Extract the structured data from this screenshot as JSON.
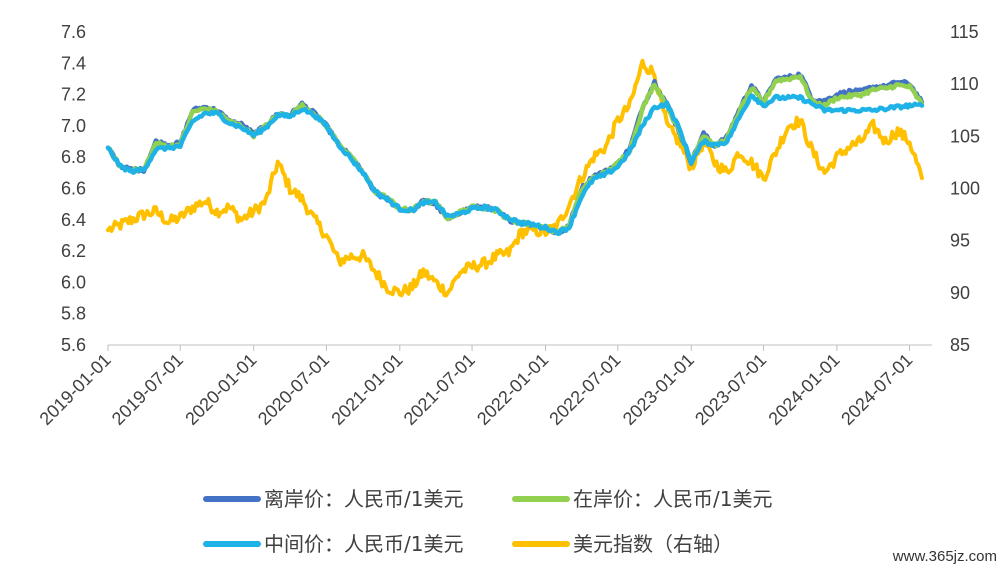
{
  "chart_data": {
    "type": "line",
    "x_tick_labels": [
      "2019-01-01",
      "2019-07-01",
      "2020-01-01",
      "2020-07-01",
      "2021-01-01",
      "2021-07-01",
      "2022-01-01",
      "2022-07-01",
      "2023-01-01",
      "2023-07-01",
      "2024-01-01",
      "2024-07-01"
    ],
    "y_left": {
      "ticks": [
        "5.6",
        "5.8",
        "6.0",
        "6.2",
        "6.4",
        "6.6",
        "6.8",
        "7.0",
        "7.2",
        "7.4",
        "7.6"
      ],
      "range": [
        5.6,
        7.6
      ]
    },
    "y_right": {
      "ticks": [
        "85",
        "90",
        "95",
        "100",
        "105",
        "110",
        "115"
      ],
      "range": [
        85,
        115
      ]
    },
    "grid": false,
    "legend_position": "bottom",
    "series": [
      {
        "name": "离岸价：人民币/1美元",
        "axis": "left",
        "color": "#4472C4",
        "points": [
          [
            "2019-01-01",
            6.86
          ],
          [
            "2019-02-01",
            6.74
          ],
          [
            "2019-03-01",
            6.72
          ],
          [
            "2019-04-01",
            6.72
          ],
          [
            "2019-05-01",
            6.9
          ],
          [
            "2019-06-01",
            6.88
          ],
          [
            "2019-07-01",
            6.89
          ],
          [
            "2019-08-01",
            7.1
          ],
          [
            "2019-09-01",
            7.12
          ],
          [
            "2019-10-01",
            7.1
          ],
          [
            "2019-11-01",
            7.03
          ],
          [
            "2019-12-01",
            7.01
          ],
          [
            "2020-01-01",
            6.95
          ],
          [
            "2020-02-01",
            7.0
          ],
          [
            "2020-03-01",
            7.08
          ],
          [
            "2020-04-01",
            7.07
          ],
          [
            "2020-05-01",
            7.14
          ],
          [
            "2020-06-01",
            7.08
          ],
          [
            "2020-07-01",
            7.0
          ],
          [
            "2020-08-01",
            6.88
          ],
          [
            "2020-09-01",
            6.8
          ],
          [
            "2020-10-01",
            6.7
          ],
          [
            "2020-11-01",
            6.57
          ],
          [
            "2020-12-01",
            6.53
          ],
          [
            "2021-01-01",
            6.47
          ],
          [
            "2021-02-01",
            6.46
          ],
          [
            "2021-03-01",
            6.52
          ],
          [
            "2021-04-01",
            6.5
          ],
          [
            "2021-05-01",
            6.4
          ],
          [
            "2021-06-01",
            6.45
          ],
          [
            "2021-07-01",
            6.48
          ],
          [
            "2021-08-01",
            6.48
          ],
          [
            "2021-09-01",
            6.46
          ],
          [
            "2021-10-01",
            6.4
          ],
          [
            "2021-11-01",
            6.38
          ],
          [
            "2021-12-01",
            6.37
          ],
          [
            "2022-01-01",
            6.35
          ],
          [
            "2022-02-01",
            6.31
          ],
          [
            "2022-03-01",
            6.36
          ],
          [
            "2022-04-01",
            6.6
          ],
          [
            "2022-05-01",
            6.68
          ],
          [
            "2022-06-01",
            6.71
          ],
          [
            "2022-07-01",
            6.76
          ],
          [
            "2022-08-01",
            6.86
          ],
          [
            "2022-09-01",
            7.12
          ],
          [
            "2022-10-01",
            7.28
          ],
          [
            "2022-11-01",
            7.14
          ],
          [
            "2022-12-01",
            6.97
          ],
          [
            "2023-01-01",
            6.77
          ],
          [
            "2023-02-01",
            6.95
          ],
          [
            "2023-03-01",
            6.87
          ],
          [
            "2023-04-01",
            6.93
          ],
          [
            "2023-05-01",
            7.1
          ],
          [
            "2023-06-01",
            7.26
          ],
          [
            "2023-07-01",
            7.15
          ],
          [
            "2023-08-01",
            7.3
          ],
          [
            "2023-09-01",
            7.31
          ],
          [
            "2023-10-01",
            7.33
          ],
          [
            "2023-11-01",
            7.17
          ],
          [
            "2023-12-01",
            7.16
          ],
          [
            "2024-01-01",
            7.2
          ],
          [
            "2024-02-01",
            7.22
          ],
          [
            "2024-03-01",
            7.22
          ],
          [
            "2024-04-01",
            7.25
          ],
          [
            "2024-05-01",
            7.25
          ],
          [
            "2024-06-01",
            7.28
          ],
          [
            "2024-07-01",
            7.27
          ],
          [
            "2024-08-01",
            7.15
          ]
        ]
      },
      {
        "name": "在岸价：人民币/1美元",
        "axis": "left",
        "color": "#92D050",
        "points": [
          [
            "2019-01-01",
            6.86
          ],
          [
            "2019-02-01",
            6.74
          ],
          [
            "2019-03-01",
            6.72
          ],
          [
            "2019-04-01",
            6.72
          ],
          [
            "2019-05-01",
            6.89
          ],
          [
            "2019-06-01",
            6.87
          ],
          [
            "2019-07-01",
            6.88
          ],
          [
            "2019-08-01",
            7.09
          ],
          [
            "2019-09-01",
            7.11
          ],
          [
            "2019-10-01",
            7.09
          ],
          [
            "2019-11-01",
            7.03
          ],
          [
            "2019-12-01",
            7.0
          ],
          [
            "2020-01-01",
            6.94
          ],
          [
            "2020-02-01",
            7.0
          ],
          [
            "2020-03-01",
            7.07
          ],
          [
            "2020-04-01",
            7.07
          ],
          [
            "2020-05-01",
            7.13
          ],
          [
            "2020-06-01",
            7.08
          ],
          [
            "2020-07-01",
            7.0
          ],
          [
            "2020-08-01",
            6.89
          ],
          [
            "2020-09-01",
            6.8
          ],
          [
            "2020-10-01",
            6.7
          ],
          [
            "2020-11-01",
            6.58
          ],
          [
            "2020-12-01",
            6.54
          ],
          [
            "2021-01-01",
            6.47
          ],
          [
            "2021-02-01",
            6.46
          ],
          [
            "2021-03-01",
            6.52
          ],
          [
            "2021-04-01",
            6.51
          ],
          [
            "2021-05-01",
            6.41
          ],
          [
            "2021-06-01",
            6.45
          ],
          [
            "2021-07-01",
            6.48
          ],
          [
            "2021-08-01",
            6.48
          ],
          [
            "2021-09-01",
            6.46
          ],
          [
            "2021-10-01",
            6.4
          ],
          [
            "2021-11-01",
            6.38
          ],
          [
            "2021-12-01",
            6.37
          ],
          [
            "2022-01-01",
            6.35
          ],
          [
            "2022-02-01",
            6.32
          ],
          [
            "2022-03-01",
            6.36
          ],
          [
            "2022-04-01",
            6.59
          ],
          [
            "2022-05-01",
            6.67
          ],
          [
            "2022-06-01",
            6.7
          ],
          [
            "2022-07-01",
            6.76
          ],
          [
            "2022-08-01",
            6.85
          ],
          [
            "2022-09-01",
            7.11
          ],
          [
            "2022-10-01",
            7.27
          ],
          [
            "2022-11-01",
            7.13
          ],
          [
            "2022-12-01",
            6.97
          ],
          [
            "2023-01-01",
            6.78
          ],
          [
            "2023-02-01",
            6.94
          ],
          [
            "2023-03-01",
            6.87
          ],
          [
            "2023-04-01",
            6.92
          ],
          [
            "2023-05-01",
            7.09
          ],
          [
            "2023-06-01",
            7.24
          ],
          [
            "2023-07-01",
            7.15
          ],
          [
            "2023-08-01",
            7.29
          ],
          [
            "2023-09-01",
            7.3
          ],
          [
            "2023-10-01",
            7.32
          ],
          [
            "2023-11-01",
            7.15
          ],
          [
            "2023-12-01",
            7.13
          ],
          [
            "2024-01-01",
            7.18
          ],
          [
            "2024-02-01",
            7.19
          ],
          [
            "2024-03-01",
            7.2
          ],
          [
            "2024-04-01",
            7.23
          ],
          [
            "2024-05-01",
            7.24
          ],
          [
            "2024-06-01",
            7.26
          ],
          [
            "2024-07-01",
            7.25
          ],
          [
            "2024-08-01",
            7.14
          ]
        ]
      },
      {
        "name": "中间价：人民币/1美元",
        "axis": "left",
        "color": "#1FB2E6",
        "points": [
          [
            "2019-01-01",
            6.86
          ],
          [
            "2019-02-01",
            6.74
          ],
          [
            "2019-03-01",
            6.71
          ],
          [
            "2019-04-01",
            6.72
          ],
          [
            "2019-05-01",
            6.85
          ],
          [
            "2019-06-01",
            6.86
          ],
          [
            "2019-07-01",
            6.87
          ],
          [
            "2019-08-01",
            7.03
          ],
          [
            "2019-09-01",
            7.08
          ],
          [
            "2019-10-01",
            7.08
          ],
          [
            "2019-11-01",
            7.02
          ],
          [
            "2019-12-01",
            6.99
          ],
          [
            "2020-01-01",
            6.94
          ],
          [
            "2020-02-01",
            6.99
          ],
          [
            "2020-03-01",
            7.07
          ],
          [
            "2020-04-01",
            7.06
          ],
          [
            "2020-05-01",
            7.11
          ],
          [
            "2020-06-01",
            7.07
          ],
          [
            "2020-07-01",
            7.0
          ],
          [
            "2020-08-01",
            6.88
          ],
          [
            "2020-09-01",
            6.79
          ],
          [
            "2020-10-01",
            6.7
          ],
          [
            "2020-11-01",
            6.58
          ],
          [
            "2020-12-01",
            6.53
          ],
          [
            "2021-01-01",
            6.47
          ],
          [
            "2021-02-01",
            6.46
          ],
          [
            "2021-03-01",
            6.51
          ],
          [
            "2021-04-01",
            6.51
          ],
          [
            "2021-05-01",
            6.42
          ],
          [
            "2021-06-01",
            6.44
          ],
          [
            "2021-07-01",
            6.47
          ],
          [
            "2021-08-01",
            6.48
          ],
          [
            "2021-09-01",
            6.46
          ],
          [
            "2021-10-01",
            6.41
          ],
          [
            "2021-11-01",
            6.38
          ],
          [
            "2021-12-01",
            6.37
          ],
          [
            "2022-01-01",
            6.35
          ],
          [
            "2022-02-01",
            6.32
          ],
          [
            "2022-03-01",
            6.35
          ],
          [
            "2022-04-01",
            6.55
          ],
          [
            "2022-05-01",
            6.66
          ],
          [
            "2022-06-01",
            6.69
          ],
          [
            "2022-07-01",
            6.74
          ],
          [
            "2022-08-01",
            6.84
          ],
          [
            "2022-09-01",
            7.0
          ],
          [
            "2022-10-01",
            7.12
          ],
          [
            "2022-11-01",
            7.14
          ],
          [
            "2022-12-01",
            6.99
          ],
          [
            "2023-01-01",
            6.77
          ],
          [
            "2023-02-01",
            6.9
          ],
          [
            "2023-03-01",
            6.88
          ],
          [
            "2023-04-01",
            6.9
          ],
          [
            "2023-05-01",
            7.05
          ],
          [
            "2023-06-01",
            7.2
          ],
          [
            "2023-07-01",
            7.13
          ],
          [
            "2023-08-01",
            7.18
          ],
          [
            "2023-09-01",
            7.18
          ],
          [
            "2023-10-01",
            7.18
          ],
          [
            "2023-11-01",
            7.14
          ],
          [
            "2023-12-01",
            7.1
          ],
          [
            "2024-01-01",
            7.1
          ],
          [
            "2024-02-01",
            7.1
          ],
          [
            "2024-03-01",
            7.1
          ],
          [
            "2024-04-01",
            7.1
          ],
          [
            "2024-05-01",
            7.11
          ],
          [
            "2024-06-01",
            7.12
          ],
          [
            "2024-07-01",
            7.13
          ],
          [
            "2024-08-01",
            7.13
          ]
        ]
      },
      {
        "name": "美元指数（右轴）",
        "axis": "right",
        "color": "#FFC000",
        "points": [
          [
            "2019-01-01",
            96.0
          ],
          [
            "2019-02-01",
            96.5
          ],
          [
            "2019-03-01",
            97.0
          ],
          [
            "2019-04-01",
            97.5
          ],
          [
            "2019-05-01",
            97.8
          ],
          [
            "2019-06-01",
            96.8
          ],
          [
            "2019-07-01",
            97.2
          ],
          [
            "2019-08-01",
            98.2
          ],
          [
            "2019-09-01",
            98.8
          ],
          [
            "2019-10-01",
            97.8
          ],
          [
            "2019-11-01",
            98.2
          ],
          [
            "2019-12-01",
            97.0
          ],
          [
            "2020-01-01",
            97.8
          ],
          [
            "2020-02-01",
            98.8
          ],
          [
            "2020-03-01",
            102.5
          ],
          [
            "2020-04-01",
            100.0
          ],
          [
            "2020-05-01",
            99.0
          ],
          [
            "2020-06-01",
            97.0
          ],
          [
            "2020-07-01",
            95.5
          ],
          [
            "2020-08-01",
            93.0
          ],
          [
            "2020-09-01",
            93.5
          ],
          [
            "2020-10-01",
            93.5
          ],
          [
            "2020-11-01",
            92.0
          ],
          [
            "2020-12-01",
            90.5
          ],
          [
            "2021-01-01",
            90.0
          ],
          [
            "2021-02-01",
            90.5
          ],
          [
            "2021-03-01",
            92.0
          ],
          [
            "2021-04-01",
            91.0
          ],
          [
            "2021-05-01",
            90.0
          ],
          [
            "2021-06-01",
            92.0
          ],
          [
            "2021-07-01",
            92.5
          ],
          [
            "2021-08-01",
            92.8
          ],
          [
            "2021-09-01",
            93.5
          ],
          [
            "2021-10-01",
            93.8
          ],
          [
            "2021-11-01",
            95.8
          ],
          [
            "2021-12-01",
            96.0
          ],
          [
            "2022-01-01",
            95.8
          ],
          [
            "2022-02-01",
            96.5
          ],
          [
            "2022-03-01",
            98.5
          ],
          [
            "2022-04-01",
            101.0
          ],
          [
            "2022-05-01",
            103.0
          ],
          [
            "2022-06-01",
            104.0
          ],
          [
            "2022-07-01",
            106.5
          ],
          [
            "2022-08-01",
            108.0
          ],
          [
            "2022-09-01",
            112.0
          ],
          [
            "2022-10-01",
            111.0
          ],
          [
            "2022-11-01",
            106.0
          ],
          [
            "2022-12-01",
            104.5
          ],
          [
            "2023-01-01",
            102.0
          ],
          [
            "2023-02-01",
            104.5
          ],
          [
            "2023-03-01",
            102.5
          ],
          [
            "2023-04-01",
            101.5
          ],
          [
            "2023-05-01",
            103.5
          ],
          [
            "2023-06-01",
            102.5
          ],
          [
            "2023-07-01",
            101.0
          ],
          [
            "2023-08-01",
            103.5
          ],
          [
            "2023-09-01",
            106.0
          ],
          [
            "2023-10-01",
            106.5
          ],
          [
            "2023-11-01",
            103.5
          ],
          [
            "2023-12-01",
            101.5
          ],
          [
            "2024-01-01",
            103.0
          ],
          [
            "2024-02-01",
            104.0
          ],
          [
            "2024-03-01",
            104.5
          ],
          [
            "2024-04-01",
            106.0
          ],
          [
            "2024-05-01",
            104.5
          ],
          [
            "2024-06-01",
            105.5
          ],
          [
            "2024-07-01",
            104.5
          ],
          [
            "2024-08-01",
            101.0
          ]
        ]
      }
    ]
  },
  "watermark": "www.365jz.com"
}
